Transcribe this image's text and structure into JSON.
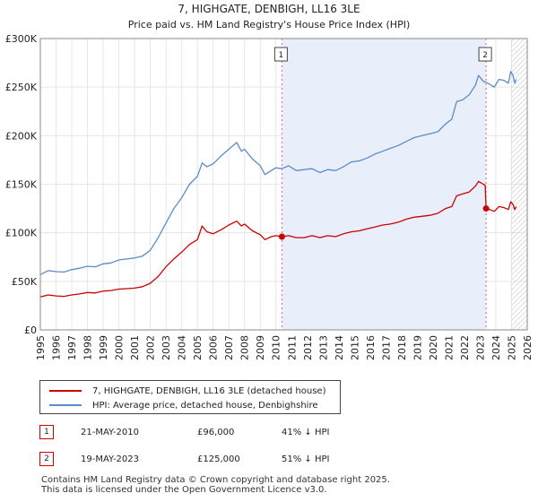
{
  "chart_data": {
    "type": "line",
    "title": "7, HIGHGATE, DENBIGH, LL16 3LE",
    "subtitle": "Price paid vs. HM Land Registry's House Price Index (HPI)",
    "xlim": [
      1995,
      2026
    ],
    "ylim": [
      0,
      300000
    ],
    "x_ticks": [
      "1995",
      "1996",
      "1997",
      "1998",
      "1999",
      "2000",
      "2001",
      "2002",
      "2003",
      "2004",
      "2005",
      "2006",
      "2007",
      "2008",
      "2009",
      "2010",
      "2011",
      "2012",
      "2013",
      "2014",
      "2015",
      "2016",
      "2017",
      "2018",
      "2019",
      "2020",
      "2021",
      "2022",
      "2023",
      "2024",
      "2025",
      "2026"
    ],
    "y_ticks": [
      {
        "value": 0,
        "label": "£0"
      },
      {
        "value": 50000,
        "label": "£50K"
      },
      {
        "value": 100000,
        "label": "£100K"
      },
      {
        "value": 150000,
        "label": "£150K"
      },
      {
        "value": 200000,
        "label": "£200K"
      },
      {
        "value": 250000,
        "label": "£250K"
      },
      {
        "value": 300000,
        "label": "£300K"
      }
    ],
    "shaded_region": [
      2010.38,
      2023.38
    ],
    "future_hatch_from": 2025.0,
    "series": [
      {
        "name": "7, HIGHGATE, DENBIGH, LL16 3LE (detached house)",
        "color": "#cc0000",
        "points": [
          [
            1995.0,
            34000
          ],
          [
            1995.5,
            36000
          ],
          [
            1996.0,
            35000
          ],
          [
            1996.5,
            34500
          ],
          [
            1997.0,
            36000
          ],
          [
            1997.5,
            37000
          ],
          [
            1998.0,
            38500
          ],
          [
            1998.5,
            38000
          ],
          [
            1999.0,
            40000
          ],
          [
            1999.5,
            40500
          ],
          [
            2000.0,
            42000
          ],
          [
            2000.5,
            42500
          ],
          [
            2001.0,
            43000
          ],
          [
            2001.5,
            44500
          ],
          [
            2002.0,
            48000
          ],
          [
            2002.5,
            55000
          ],
          [
            2003.0,
            65000
          ],
          [
            2003.5,
            73000
          ],
          [
            2004.0,
            80000
          ],
          [
            2004.5,
            88000
          ],
          [
            2005.0,
            93000
          ],
          [
            2005.3,
            107000
          ],
          [
            2005.6,
            101000
          ],
          [
            2006.0,
            99000
          ],
          [
            2006.5,
            103000
          ],
          [
            2007.0,
            108000
          ],
          [
            2007.5,
            112000
          ],
          [
            2007.8,
            107000
          ],
          [
            2008.0,
            109000
          ],
          [
            2008.5,
            102000
          ],
          [
            2009.0,
            98000
          ],
          [
            2009.3,
            93000
          ],
          [
            2009.7,
            96000
          ],
          [
            2010.0,
            97000
          ],
          [
            2010.38,
            96000
          ],
          [
            2010.8,
            97000
          ],
          [
            2011.3,
            95000
          ],
          [
            2011.8,
            95000
          ],
          [
            2012.3,
            97000
          ],
          [
            2012.8,
            95000
          ],
          [
            2013.3,
            97000
          ],
          [
            2013.8,
            96000
          ],
          [
            2014.3,
            99000
          ],
          [
            2014.8,
            101000
          ],
          [
            2015.3,
            102000
          ],
          [
            2015.8,
            104000
          ],
          [
            2016.3,
            106000
          ],
          [
            2016.8,
            108000
          ],
          [
            2017.3,
            109000
          ],
          [
            2017.8,
            111000
          ],
          [
            2018.3,
            114000
          ],
          [
            2018.8,
            116000
          ],
          [
            2019.3,
            117000
          ],
          [
            2019.8,
            118000
          ],
          [
            2020.3,
            120000
          ],
          [
            2020.8,
            125000
          ],
          [
            2021.2,
            127000
          ],
          [
            2021.5,
            138000
          ],
          [
            2021.9,
            140000
          ],
          [
            2022.3,
            142000
          ],
          [
            2022.7,
            148000
          ],
          [
            2022.9,
            153000
          ],
          [
            2023.2,
            150000
          ],
          [
            2023.32,
            149000
          ],
          [
            2023.38,
            125000
          ],
          [
            2023.6,
            124000
          ],
          [
            2023.9,
            122000
          ],
          [
            2024.2,
            127000
          ],
          [
            2024.5,
            126000
          ],
          [
            2024.8,
            124000
          ],
          [
            2024.95,
            132000
          ],
          [
            2025.1,
            129000
          ],
          [
            2025.2,
            124000
          ],
          [
            2025.3,
            127000
          ]
        ]
      },
      {
        "name": "HPI: Average price, detached house, Denbighshire",
        "color": "#5b8cc8",
        "points": [
          [
            1995.0,
            57000
          ],
          [
            1995.5,
            61000
          ],
          [
            1996.0,
            60000
          ],
          [
            1996.5,
            59500
          ],
          [
            1997.0,
            62000
          ],
          [
            1997.5,
            63500
          ],
          [
            1998.0,
            65500
          ],
          [
            1998.5,
            65000
          ],
          [
            1999.0,
            68000
          ],
          [
            1999.5,
            69000
          ],
          [
            2000.0,
            72000
          ],
          [
            2000.5,
            73000
          ],
          [
            2001.0,
            74000
          ],
          [
            2001.5,
            76000
          ],
          [
            2002.0,
            82000
          ],
          [
            2002.5,
            95000
          ],
          [
            2003.0,
            110000
          ],
          [
            2003.5,
            125000
          ],
          [
            2004.0,
            136000
          ],
          [
            2004.5,
            150000
          ],
          [
            2005.0,
            158000
          ],
          [
            2005.3,
            172000
          ],
          [
            2005.6,
            168000
          ],
          [
            2006.0,
            171000
          ],
          [
            2006.5,
            179000
          ],
          [
            2007.0,
            186000
          ],
          [
            2007.5,
            193000
          ],
          [
            2007.8,
            184000
          ],
          [
            2008.0,
            186000
          ],
          [
            2008.5,
            176000
          ],
          [
            2009.0,
            169000
          ],
          [
            2009.3,
            160000
          ],
          [
            2009.7,
            164000
          ],
          [
            2010.0,
            167000
          ],
          [
            2010.38,
            166000
          ],
          [
            2010.8,
            169000
          ],
          [
            2011.3,
            164000
          ],
          [
            2011.8,
            165000
          ],
          [
            2012.3,
            166000
          ],
          [
            2012.8,
            162000
          ],
          [
            2013.3,
            165000
          ],
          [
            2013.8,
            164000
          ],
          [
            2014.3,
            168000
          ],
          [
            2014.8,
            173000
          ],
          [
            2015.3,
            174000
          ],
          [
            2015.8,
            177000
          ],
          [
            2016.3,
            181000
          ],
          [
            2016.8,
            184000
          ],
          [
            2017.3,
            187000
          ],
          [
            2017.8,
            190000
          ],
          [
            2018.3,
            194000
          ],
          [
            2018.8,
            198000
          ],
          [
            2019.3,
            200000
          ],
          [
            2019.8,
            202000
          ],
          [
            2020.3,
            204000
          ],
          [
            2020.8,
            212000
          ],
          [
            2021.2,
            217000
          ],
          [
            2021.5,
            235000
          ],
          [
            2021.9,
            237000
          ],
          [
            2022.3,
            242000
          ],
          [
            2022.7,
            252000
          ],
          [
            2022.9,
            262000
          ],
          [
            2023.2,
            256000
          ],
          [
            2023.38,
            255000
          ],
          [
            2023.6,
            253000
          ],
          [
            2023.9,
            250000
          ],
          [
            2024.2,
            258000
          ],
          [
            2024.5,
            257000
          ],
          [
            2024.8,
            254000
          ],
          [
            2024.95,
            266000
          ],
          [
            2025.1,
            262000
          ],
          [
            2025.2,
            254000
          ],
          [
            2025.3,
            258000
          ]
        ]
      }
    ],
    "sales": [
      {
        "id": "1",
        "year": 2010.38,
        "value": 96000
      },
      {
        "id": "2",
        "year": 2023.38,
        "value": 125000
      }
    ]
  },
  "legend": {
    "items": [
      {
        "label": "7, HIGHGATE, DENBIGH, LL16 3LE (detached house)",
        "color": "#cc0000"
      },
      {
        "label": "HPI: Average price, detached house, Denbighshire",
        "color": "#5b8cc8"
      }
    ]
  },
  "sales_table": [
    {
      "id": "1",
      "date": "21-MAY-2010",
      "price": "£96,000",
      "hpi": "41% ↓ HPI"
    },
    {
      "id": "2",
      "date": "19-MAY-2023",
      "price": "£125,000",
      "hpi": "51% ↓ HPI"
    }
  ],
  "footer": {
    "line1": "Contains HM Land Registry data © Crown copyright and database right 2025.",
    "line2": "This data is licensed under the Open Government Licence v3.0."
  }
}
